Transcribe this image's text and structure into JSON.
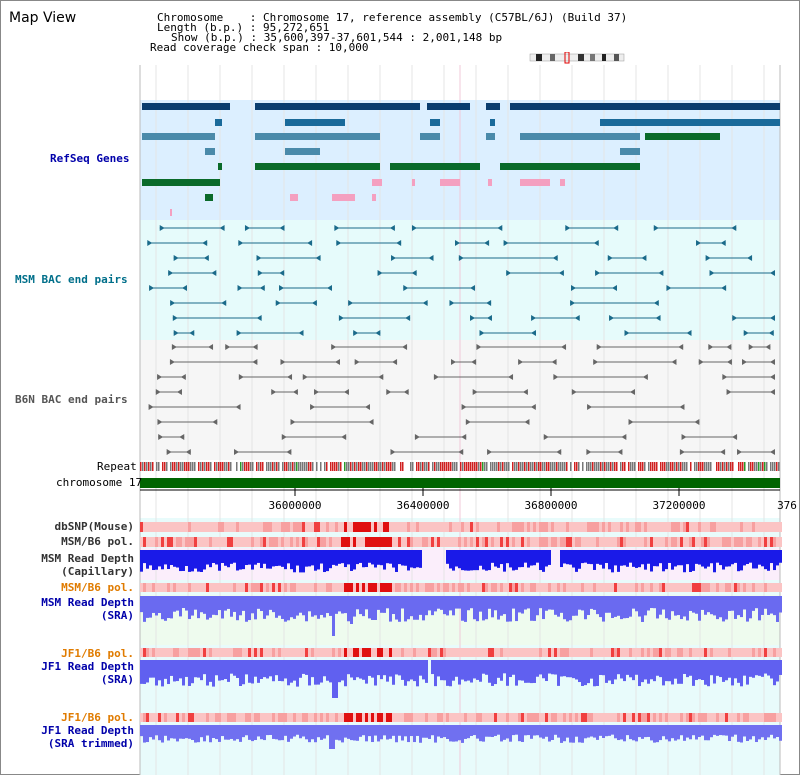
{
  "title": "Map View",
  "info": {
    "line1": "Chromosome    : Chromosome 17, reference assembly (C57BL/6J) (Build 37)",
    "line2": "Length (b.p.) : 95,272,651",
    "line3": "Show (b.p.) : 35,600,397-37,601,544 : 2,001,148 bp",
    "line4": "Read coverage check span : 10,000"
  },
  "tracks": {
    "refseq": "RefSeq Genes",
    "msm_bac": "MSM BAC end pairs",
    "b6n_bac": "B6N BAC end pairs",
    "repeat": "Repeat",
    "chromosome": "chromosome 17",
    "dbsnp": "dbSNP(Mouse)",
    "msm_b6_pol_1": "MSM/B6 pol.",
    "msm_depth_cap_1": "MSM Read Depth",
    "msm_depth_cap_2": "(Capillary)",
    "msm_b6_pol_2": "MSM/B6 pol.",
    "msm_depth_sra_1": "MSM Read Depth",
    "msm_depth_sra_2": "(SRA)",
    "jf1_b6_pol_1": "JF1/B6 pol.",
    "jf1_depth_sra_1": "JF1 Read Depth",
    "jf1_depth_sra_2": "(SRA)",
    "jf1_b6_pol_2": "JF1/B6 pol.",
    "jf1_depth_trim_1": "JF1 Read Depth",
    "jf1_depth_trim_2": "(SRA trimmed)"
  },
  "axis": {
    "ticks": [
      "36000000",
      "36400000",
      "36800000",
      "37200000",
      "376"
    ]
  },
  "colors": {
    "refseq_bg": "#dcefff",
    "bac_bg": "#e6fbfb",
    "depth_bg_pink": "#fbeefb",
    "depth_bg_green": "#eefbee",
    "depth_bg_cyan": "#e8fbfb",
    "chromosome_bar": "#006400",
    "depth_blue": "#2020e0"
  }
}
